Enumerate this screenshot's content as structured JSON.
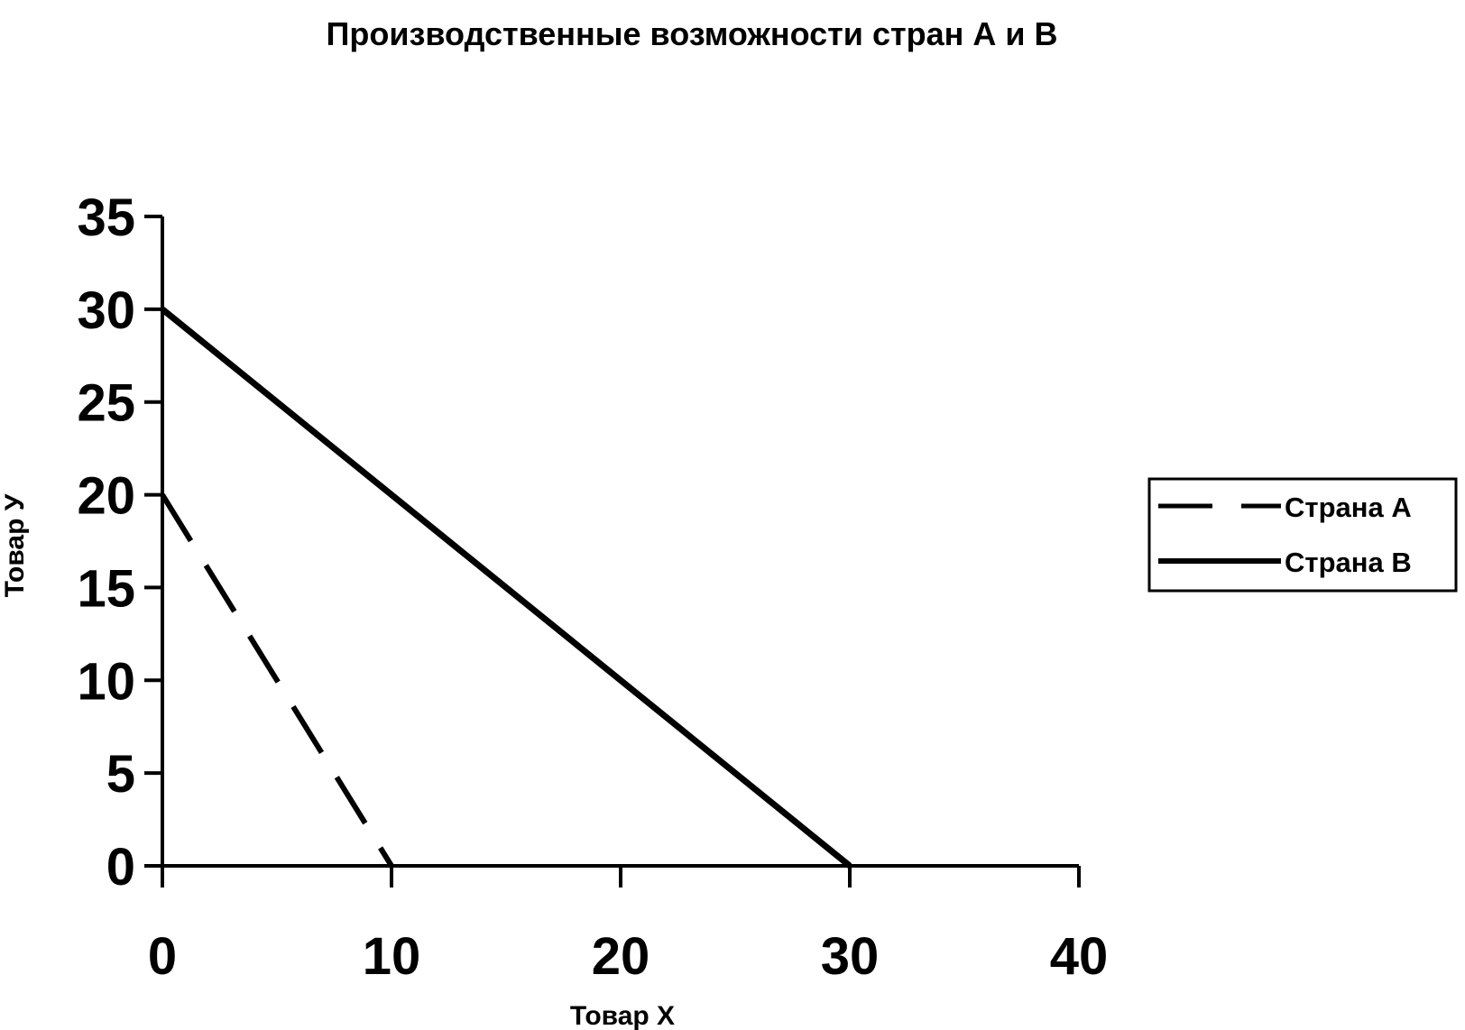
{
  "chart_data": {
    "type": "line",
    "title": "Производственные возможности стран А и  В",
    "xlabel": "Товар X",
    "ylabel": "Товар У",
    "xlim": [
      0,
      40
    ],
    "ylim": [
      0,
      35
    ],
    "x_ticks": [
      0,
      10,
      20,
      30,
      40
    ],
    "y_ticks": [
      0,
      5,
      10,
      15,
      20,
      25,
      30,
      35
    ],
    "x_tick_labels": [
      "0",
      "10",
      "20",
      "30",
      "40"
    ],
    "y_tick_labels": [
      "0",
      "5",
      "10",
      "15",
      "20",
      "25",
      "30",
      "35"
    ],
    "grid": false,
    "legend_position": "right",
    "series": [
      {
        "name": "Страна А",
        "style": "dashed",
        "color": "#000000",
        "points": [
          [
            0,
            20
          ],
          [
            10,
            0
          ]
        ]
      },
      {
        "name": "Страна В",
        "style": "solid",
        "color": "#000000",
        "points": [
          [
            0,
            30
          ],
          [
            30,
            0
          ]
        ]
      }
    ]
  }
}
